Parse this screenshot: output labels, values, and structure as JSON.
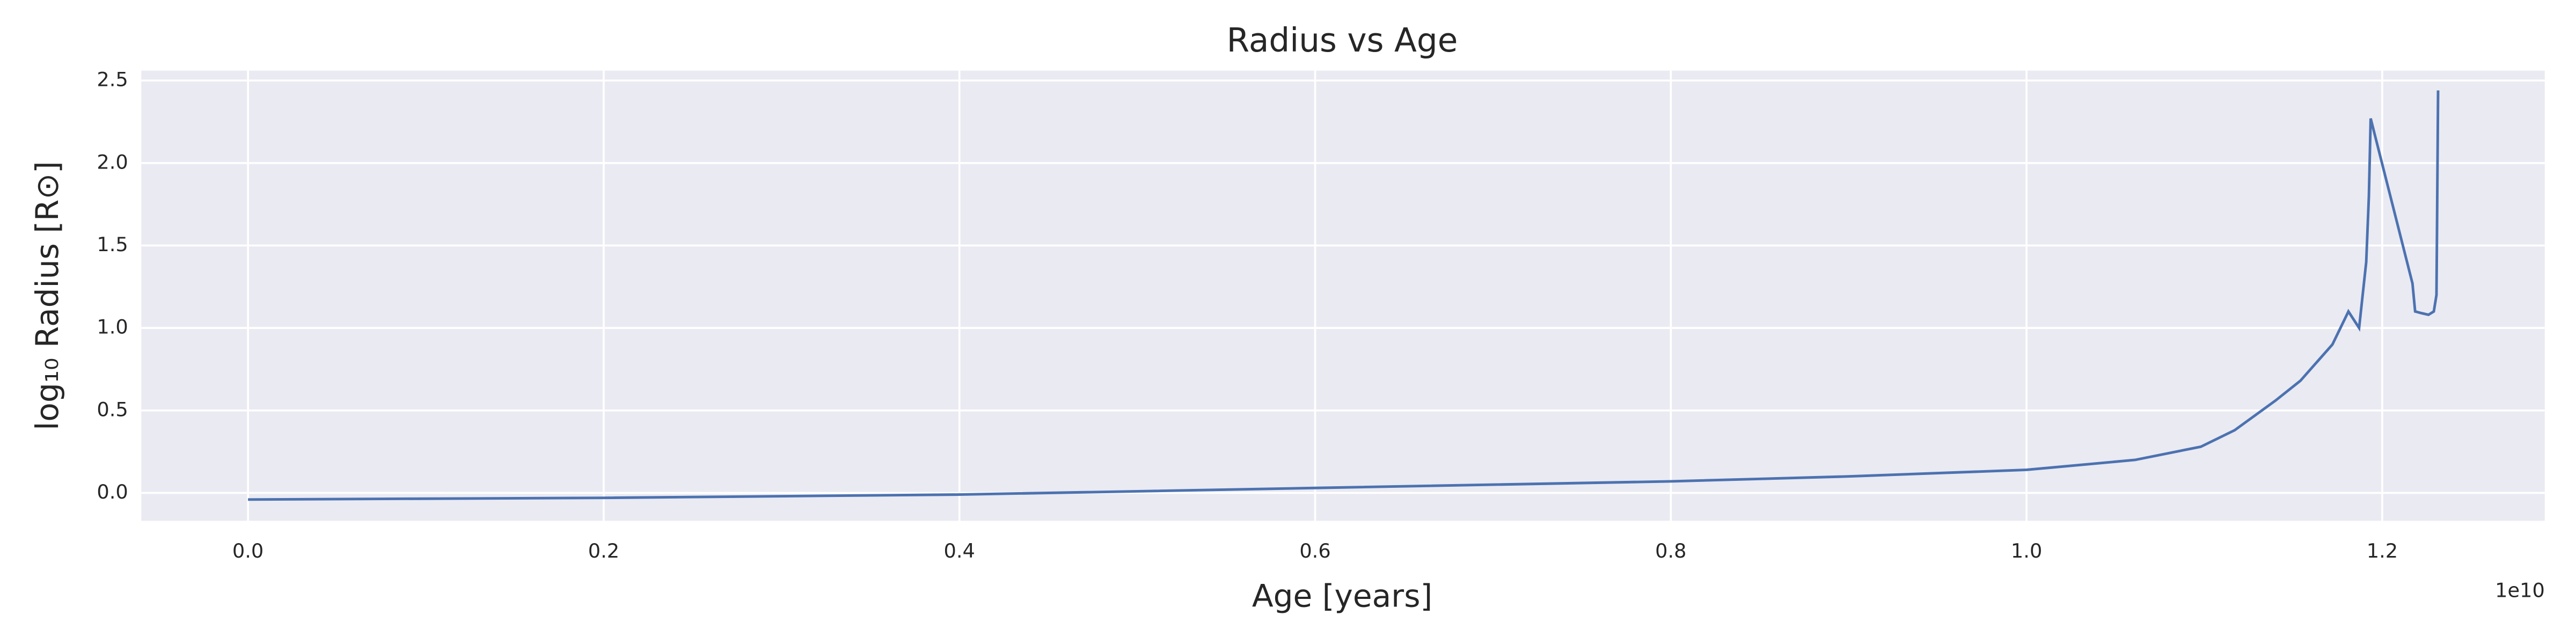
{
  "chart_data": {
    "type": "line",
    "title": "Radius vs Age",
    "xlabel": "Age [years]",
    "ylabel": "log₁₀ Radius [R⊙]",
    "x_offset_label": "1e10",
    "x": [
      0,
      0.2,
      0.4,
      0.6,
      0.8,
      0.9,
      1.0,
      1.061,
      1.098,
      1.117,
      1.14,
      1.154,
      1.172,
      1.181,
      1.187,
      1.191,
      1.1925,
      1.1935,
      1.217,
      1.2185,
      1.222,
      1.226,
      1.229,
      1.2305,
      1.2308,
      1.2314
    ],
    "series": [
      {
        "name": "Radius",
        "color": "#4c72b0",
        "values": [
          -0.04,
          -0.03,
          -0.01,
          0.03,
          0.07,
          0.1,
          0.14,
          0.2,
          0.28,
          0.38,
          0.56,
          0.68,
          0.9,
          1.1,
          1.0,
          1.4,
          1.8,
          2.27,
          1.27,
          1.1,
          1.09,
          1.08,
          1.1,
          1.2,
          1.6,
          2.44
        ]
      }
    ],
    "xlim": [
      -0.06,
      1.2914
    ],
    "ylim": [
      -0.169,
      2.56
    ],
    "xticks": [
      {
        "value": 0,
        "label": "0.0"
      },
      0.2,
      0.4,
      0.6,
      0.8,
      {
        "value": 1,
        "label": "1.0"
      },
      1.2
    ],
    "yticks": [
      {
        "value": 0,
        "label": "0.0"
      },
      0.5,
      {
        "value": 1,
        "label": "1.0"
      },
      1.5,
      {
        "value": 2,
        "label": "2.0"
      },
      2.5
    ],
    "grid": true,
    "background": "#eaeaf2"
  }
}
